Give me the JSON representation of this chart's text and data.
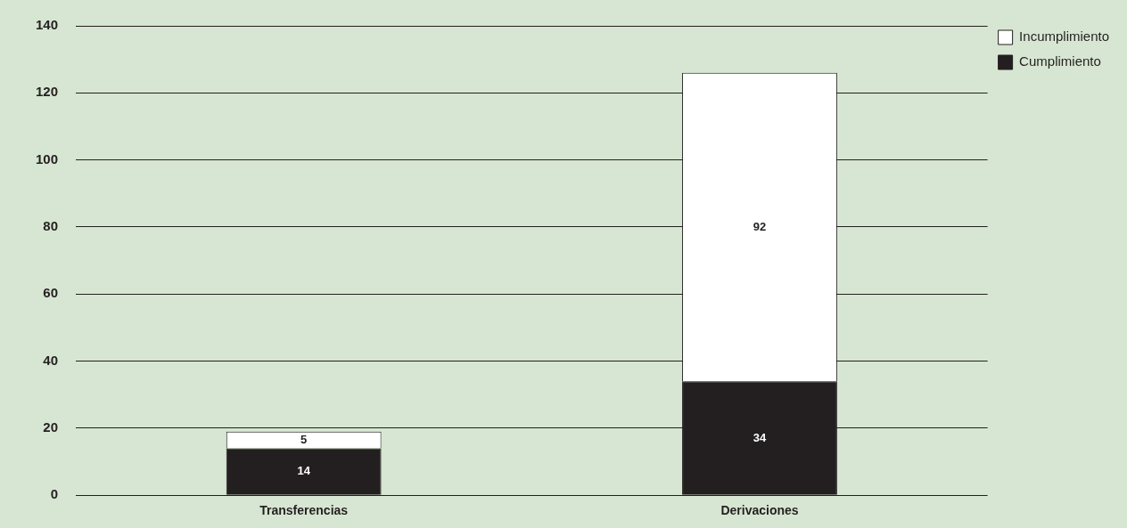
{
  "chart_data": {
    "type": "bar",
    "stacked": true,
    "categories": [
      "Transferencias",
      "Derivaciones"
    ],
    "series": [
      {
        "name": "Cumplimiento",
        "color": "#231f20",
        "values": [
          14,
          34
        ]
      },
      {
        "name": "Incumplimiento",
        "color": "#ffffff",
        "values": [
          5,
          92
        ]
      }
    ],
    "ylim": [
      0,
      140
    ],
    "yticks": [
      0,
      20,
      40,
      60,
      80,
      100,
      120,
      140
    ],
    "grid": "y",
    "legend": "top right",
    "data_labels": true
  }
}
